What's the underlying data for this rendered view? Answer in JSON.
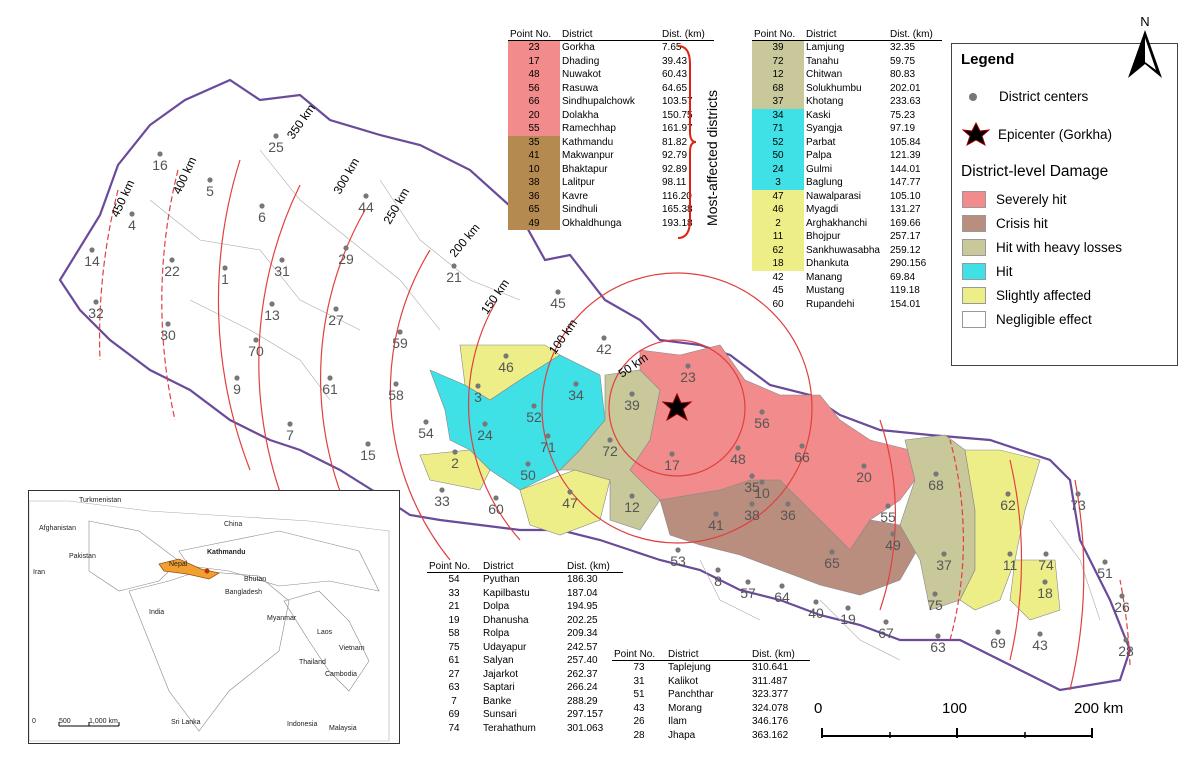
{
  "table_headers": {
    "point": "Point No.",
    "district": "District",
    "dist": "Dist. (km)"
  },
  "table1": [
    {
      "p": "23",
      "d": "Gorkha",
      "k": "7.65",
      "c": "#f28b8b"
    },
    {
      "p": "17",
      "d": "Dhading",
      "k": "39.43",
      "c": "#f28b8b"
    },
    {
      "p": "48",
      "d": "Nuwakot",
      "k": "60.43",
      "c": "#f28b8b"
    },
    {
      "p": "56",
      "d": "Rasuwa",
      "k": "64.65",
      "c": "#f28b8b"
    },
    {
      "p": "66",
      "d": "Sindhupalchowk",
      "k": "103.57",
      "c": "#f28b8b"
    },
    {
      "p": "20",
      "d": "Dolakha",
      "k": "150.75",
      "c": "#f28b8b"
    },
    {
      "p": "55",
      "d": "Ramechhap",
      "k": "161.97",
      "c": "#f28b8b"
    },
    {
      "p": "35",
      "d": "Kathmandu",
      "k": "81.82",
      "c": "#b48a50"
    },
    {
      "p": "41",
      "d": "Makwanpur",
      "k": "92.79",
      "c": "#b48a50"
    },
    {
      "p": "10",
      "d": "Bhaktapur",
      "k": "92.89",
      "c": "#b48a50"
    },
    {
      "p": "38",
      "d": "Lalitpur",
      "k": "98.11",
      "c": "#b48a50"
    },
    {
      "p": "36",
      "d": "Kavre",
      "k": "116.20",
      "c": "#b48a50"
    },
    {
      "p": "65",
      "d": "Sindhuli",
      "k": "165.38",
      "c": "#b48a50"
    },
    {
      "p": "49",
      "d": "Okhaldhunga",
      "k": "193.18",
      "c": "#b48a50"
    }
  ],
  "most_affected_label": "Most-affected districts",
  "table2": [
    {
      "p": "39",
      "d": "Lamjung",
      "k": "32.35",
      "c": "#c8c89a"
    },
    {
      "p": "72",
      "d": "Tanahu",
      "k": "59.75",
      "c": "#c8c89a"
    },
    {
      "p": "12",
      "d": "Chitwan",
      "k": "80.83",
      "c": "#c8c89a"
    },
    {
      "p": "68",
      "d": "Solukhumbu",
      "k": "202.01",
      "c": "#c8c89a"
    },
    {
      "p": "37",
      "d": "Khotang",
      "k": "233.63",
      "c": "#c8c89a"
    },
    {
      "p": "34",
      "d": "Kaski",
      "k": "75.23",
      "c": "#3fe0e6"
    },
    {
      "p": "71",
      "d": "Syangja",
      "k": "97.19",
      "c": "#3fe0e6"
    },
    {
      "p": "52",
      "d": "Parbat",
      "k": "105.84",
      "c": "#3fe0e6"
    },
    {
      "p": "50",
      "d": "Palpa",
      "k": "121.39",
      "c": "#3fe0e6"
    },
    {
      "p": "24",
      "d": "Gulmi",
      "k": "144.01",
      "c": "#3fe0e6"
    },
    {
      "p": "3",
      "d": "Baglung",
      "k": "147.77",
      "c": "#3fe0e6"
    },
    {
      "p": "47",
      "d": "Nawalparasi",
      "k": "105.10",
      "c": "#eeee88"
    },
    {
      "p": "46",
      "d": "Myagdi",
      "k": "131.27",
      "c": "#eeee88"
    },
    {
      "p": "2",
      "d": "Arghakhanchi",
      "k": "169.66",
      "c": "#eeee88"
    },
    {
      "p": "11",
      "d": "Bhojpur",
      "k": "257.17",
      "c": "#eeee88"
    },
    {
      "p": "62",
      "d": "Sankhuwasabha",
      "k": "259.12",
      "c": "#eeee88"
    },
    {
      "p": "18",
      "d": "Dhankuta",
      "k": "290.156",
      "c": "#eeee88"
    },
    {
      "p": "42",
      "d": "Manang",
      "k": "69.84",
      "c": ""
    },
    {
      "p": "45",
      "d": "Mustang",
      "k": "119.18",
      "c": ""
    },
    {
      "p": "60",
      "d": "Rupandehi",
      "k": "154.01",
      "c": ""
    }
  ],
  "table3": [
    {
      "p": "54",
      "d": "Pyuthan",
      "k": "186.30"
    },
    {
      "p": "33",
      "d": "Kapilbastu",
      "k": "187.04"
    },
    {
      "p": "21",
      "d": "Dolpa",
      "k": "194.95"
    },
    {
      "p": "19",
      "d": "Dhanusha",
      "k": "202.25"
    },
    {
      "p": "58",
      "d": "Rolpa",
      "k": "209.34"
    },
    {
      "p": "75",
      "d": "Udayapur",
      "k": "242.57"
    },
    {
      "p": "61",
      "d": "Salyan",
      "k": "257.40"
    },
    {
      "p": "27",
      "d": "Jajarkot",
      "k": "262.37"
    },
    {
      "p": "63",
      "d": "Saptari",
      "k": "266.24"
    },
    {
      "p": "7",
      "d": "Banke",
      "k": "288.29"
    },
    {
      "p": "69",
      "d": "Sunsari",
      "k": "297.157"
    },
    {
      "p": "74",
      "d": "Terahathum",
      "k": "301.063"
    }
  ],
  "table4": [
    {
      "p": "73",
      "d": "Taplejung",
      "k": "310.641"
    },
    {
      "p": "31",
      "d": "Kalikot",
      "k": "311.487"
    },
    {
      "p": "51",
      "d": "Panchthar",
      "k": "323.377"
    },
    {
      "p": "43",
      "d": "Morang",
      "k": "324.078"
    },
    {
      "p": "26",
      "d": "Ilam",
      "k": "346.176"
    },
    {
      "p": "28",
      "d": "Jhapa",
      "k": "363.162"
    }
  ],
  "legend": {
    "title": "Legend",
    "district_centers": "District centers",
    "epicenter": "Epicenter (Gorkha)",
    "damage_title": "District-level Damage",
    "classes": [
      {
        "label": "Severely hit",
        "color": "#f28b8b"
      },
      {
        "label": "Crisis hit",
        "color": "#b98e7e"
      },
      {
        "label": "Hit with heavy losses",
        "color": "#c8c89a"
      },
      {
        "label": "Hit",
        "color": "#3fe0e6"
      },
      {
        "label": "Slightly affected",
        "color": "#eeee88"
      },
      {
        "label": "Negligible effect",
        "color": "#ffffff"
      }
    ]
  },
  "north_label": "N",
  "scale": {
    "ticks": [
      "0",
      "100",
      "200 km"
    ]
  },
  "ring_labels": [
    "50 km",
    "100 km",
    "150 km",
    "200 km",
    "250 km",
    "300 km",
    "350 km",
    "400 km",
    "450 km"
  ],
  "district_points": [
    "1",
    "2",
    "3",
    "4",
    "5",
    "6",
    "7",
    "8",
    "9",
    "10",
    "11",
    "12",
    "13",
    "14",
    "15",
    "16",
    "17",
    "18",
    "19",
    "20",
    "21",
    "22",
    "23",
    "24",
    "25",
    "26",
    "27",
    "28",
    "29",
    "30",
    "31",
    "32",
    "33",
    "34",
    "35",
    "36",
    "37",
    "38",
    "39",
    "40",
    "41",
    "42",
    "43",
    "44",
    "45",
    "46",
    "47",
    "48",
    "49",
    "50",
    "51",
    "52",
    "53",
    "54",
    "55",
    "56",
    "57",
    "58",
    "59",
    "60",
    "61",
    "62",
    "63",
    "64",
    "65",
    "66",
    "67",
    "68",
    "69",
    "70",
    "71",
    "72",
    "73",
    "74",
    "75"
  ],
  "inset_labels": [
    "Turkmenistan",
    "Afghanistan",
    "Pakistan",
    "Iran",
    "India",
    "China",
    "Nepal",
    "Kathmandu",
    "Bhutan",
    "Bangladesh",
    "Myanmar",
    "Laos",
    "Thailand",
    "Vietnam",
    "Cambodia",
    "Sri Lanka",
    "Indonesia",
    "Malaysia"
  ],
  "inset_scale": [
    "0",
    "500",
    "1,000 km"
  ]
}
